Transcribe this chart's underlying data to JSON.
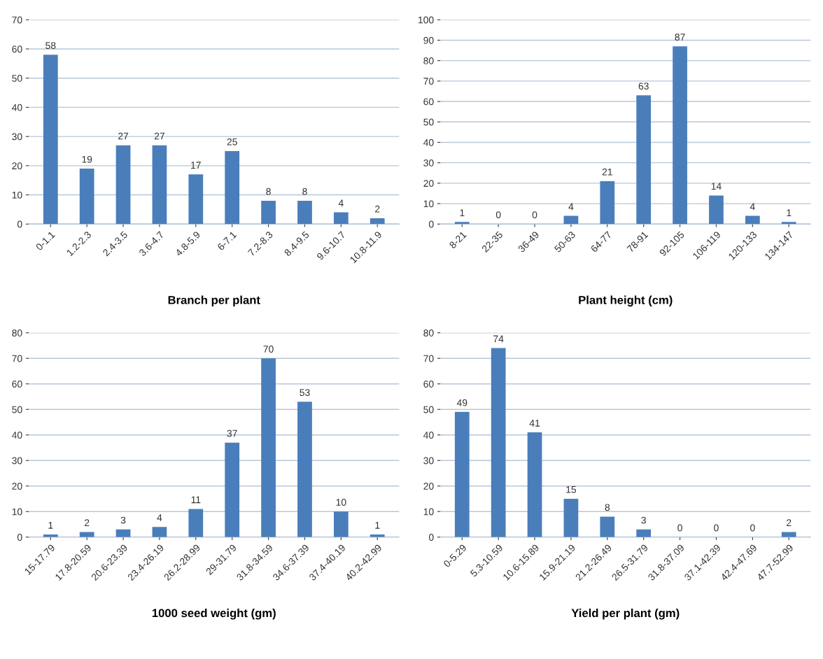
{
  "chart_data": [
    {
      "type": "bar",
      "title": "Branch per plant",
      "categories": [
        "0-1.1",
        "1.2-2.3",
        "2.4-3.5",
        "3.6-4.7",
        "4.8-5.9",
        "6-7.1",
        "7.2-8.3",
        "8.4-9.5",
        "9.6-10.7",
        "10.8-11.9"
      ],
      "values": [
        58,
        19,
        27,
        27,
        17,
        25,
        8,
        8,
        4,
        2
      ],
      "color": "#4a7ebb",
      "ylim": [
        0,
        70
      ],
      "yticks": [
        0,
        10,
        20,
        30,
        40,
        50,
        60,
        70
      ],
      "grid": "y",
      "data_labels": true
    },
    {
      "type": "bar",
      "title": "Plant height (cm)",
      "categories": [
        "8-21",
        "22-35",
        "36-49",
        "50-63",
        "64-77",
        "78-91",
        "92-105",
        "106-119",
        "120-133",
        "134-147"
      ],
      "values": [
        1,
        0,
        0,
        4,
        21,
        63,
        87,
        14,
        4,
        1
      ],
      "color": "#4a7ebb",
      "ylim": [
        0,
        100
      ],
      "yticks": [
        0,
        10,
        20,
        30,
        40,
        50,
        60,
        70,
        80,
        90,
        100
      ],
      "grid": "y",
      "data_labels": true
    },
    {
      "type": "bar",
      "title": "1000 seed weight (gm)",
      "categories": [
        "15-17.79",
        "17.8-20.59",
        "20.6-23.39",
        "23.4-26.19",
        "26.2-28.99",
        "29-31.79",
        "31.8-34.59",
        "34.6-37.39",
        "37.4-40.19",
        "40.2-42.99"
      ],
      "values": [
        1,
        2,
        3,
        4,
        11,
        37,
        70,
        53,
        10,
        1
      ],
      "color": "#4a7ebb",
      "ylim": [
        0,
        80
      ],
      "yticks": [
        0,
        10,
        20,
        30,
        40,
        50,
        60,
        70,
        80
      ],
      "grid": "y",
      "data_labels": true
    },
    {
      "type": "bar",
      "title": "Yield per plant (gm)",
      "categories": [
        "0-5.29",
        "5.3-10.59",
        "10.6-15.89",
        "15.9-21.19",
        "21.2-26.49",
        "26.5-31.79",
        "31.8-37.09",
        "37.1-42.39",
        "42.4-47.69",
        "47.7-52.99"
      ],
      "values": [
        49,
        74,
        41,
        15,
        8,
        3,
        0,
        0,
        0,
        2
      ],
      "color": "#4a7ebb",
      "ylim": [
        0,
        80
      ],
      "yticks": [
        0,
        10,
        20,
        30,
        40,
        50,
        60,
        70,
        80
      ],
      "grid": "y",
      "data_labels": true
    }
  ]
}
